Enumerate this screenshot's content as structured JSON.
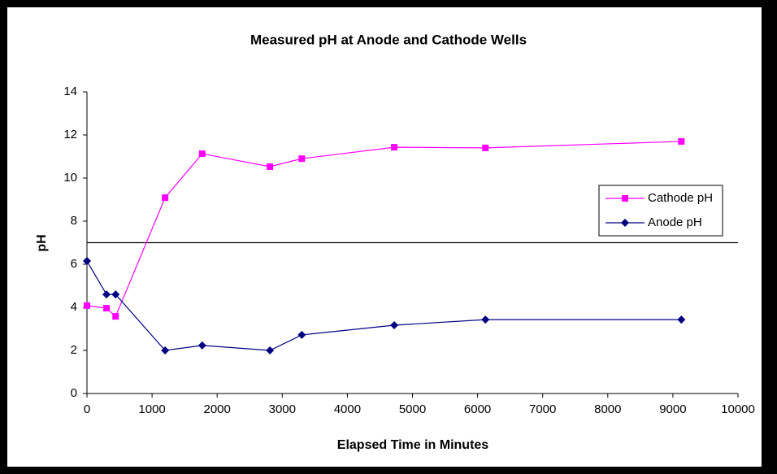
{
  "chart_data": {
    "type": "line",
    "title": "Measured pH at Anode and Cathode Wells",
    "x_label": "Elapsed Time in Minutes",
    "y_label": "pH",
    "xlim": [
      0,
      10000
    ],
    "xticks": [
      0,
      1000,
      2000,
      3000,
      4000,
      5000,
      6000,
      7000,
      8000,
      9000,
      10000
    ],
    "ylim": [
      0,
      14
    ],
    "yticks": [
      0,
      2,
      4,
      6,
      8,
      10,
      12,
      14
    ],
    "reference_line": 7,
    "grid": false,
    "legend": "right",
    "series": [
      {
        "name": "Cathode pH",
        "color": "#ff00ff",
        "marker": "square",
        "x": [
          0,
          300,
          440,
          1200,
          1770,
          2810,
          3300,
          4720,
          6120,
          9130
        ],
        "values": [
          4.08,
          3.96,
          3.58,
          9.09,
          11.13,
          10.53,
          10.9,
          11.43,
          11.4,
          11.7
        ]
      },
      {
        "name": "Anode pH",
        "color": "#000080",
        "marker": "diamond",
        "x": [
          0,
          300,
          440,
          1200,
          1770,
          2810,
          3300,
          4720,
          6120,
          9130
        ],
        "values": [
          6.15,
          4.6,
          4.6,
          2.0,
          2.23,
          2.0,
          2.72,
          3.17,
          3.43,
          3.43
        ]
      }
    ]
  }
}
